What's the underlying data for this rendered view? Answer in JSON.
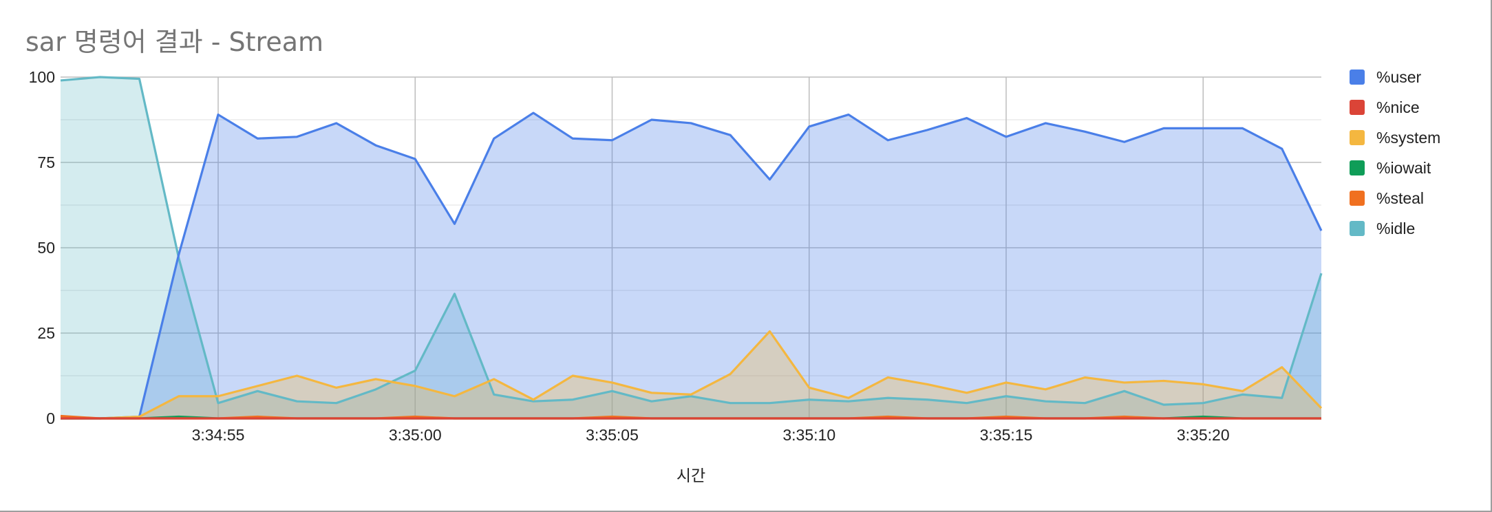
{
  "chart_data": {
    "type": "area",
    "title": "sar 명령어 결과 - Stream",
    "xlabel": "시간",
    "ylabel": "",
    "ylim": [
      0,
      100
    ],
    "yticks": [
      0,
      25,
      50,
      75,
      100
    ],
    "x_range": [
      "3:34:51",
      "3:35:23"
    ],
    "xticks": [
      "3:34:55",
      "3:35:00",
      "3:35:05",
      "3:35:10",
      "3:35:15",
      "3:35:20"
    ],
    "x": [
      "3:34:51",
      "3:34:52",
      "3:34:53",
      "3:34:54",
      "3:34:55",
      "3:34:56",
      "3:34:57",
      "3:34:58",
      "3:34:59",
      "3:35:00",
      "3:35:01",
      "3:35:02",
      "3:35:03",
      "3:35:04",
      "3:35:05",
      "3:35:06",
      "3:35:07",
      "3:35:08",
      "3:35:09",
      "3:35:10",
      "3:35:11",
      "3:35:12",
      "3:35:13",
      "3:35:14",
      "3:35:15",
      "3:35:16",
      "3:35:17",
      "3:35:18",
      "3:35:19",
      "3:35:20",
      "3:35:21",
      "3:35:22",
      "3:35:23"
    ],
    "grid": true,
    "legend_position": "right",
    "series": [
      {
        "name": "%user",
        "color": "#4a7fe8",
        "values": [
          0,
          0,
          0.5,
          48,
          89,
          82,
          82.5,
          86.5,
          80,
          76,
          57,
          82,
          89.5,
          82,
          81.5,
          87.5,
          86.5,
          83,
          70,
          85.5,
          89,
          81.5,
          84.5,
          88,
          82.5,
          86.5,
          84,
          81,
          85,
          85,
          85,
          79,
          55
        ]
      },
      {
        "name": "%nice",
        "color": "#db4437",
        "values": [
          0,
          0,
          0,
          0,
          0,
          0,
          0,
          0,
          0,
          0,
          0,
          0,
          0,
          0,
          0,
          0,
          0,
          0,
          0,
          0,
          0,
          0,
          0,
          0,
          0,
          0,
          0,
          0,
          0,
          0,
          0,
          0,
          0
        ]
      },
      {
        "name": "%system",
        "color": "#f4b740",
        "values": [
          0,
          0,
          0.5,
          6.5,
          6.5,
          9.5,
          12.5,
          9,
          11.5,
          9.5,
          6.5,
          11.5,
          5.5,
          12.5,
          10.5,
          7.5,
          7,
          13,
          25.5,
          9,
          6,
          12,
          10,
          7.5,
          10.5,
          8.5,
          12,
          10.5,
          11,
          10,
          8,
          15,
          3
        ]
      },
      {
        "name": "%iowait",
        "color": "#0f9d58",
        "values": [
          0,
          0,
          0,
          0.5,
          0,
          0,
          0,
          0,
          0,
          0,
          0,
          0,
          0,
          0,
          0,
          0,
          0,
          0,
          0,
          0,
          0,
          0,
          0,
          0,
          0,
          0,
          0,
          0,
          0,
          0.5,
          0,
          0,
          0
        ]
      },
      {
        "name": "%steal",
        "color": "#f07020",
        "values": [
          0.7,
          0,
          0,
          0,
          0,
          0.5,
          0,
          0,
          0,
          0.5,
          0,
          0,
          0,
          0,
          0.5,
          0,
          0,
          0,
          0,
          0,
          0,
          0.5,
          0,
          0,
          0.5,
          0,
          0,
          0.5,
          0,
          0,
          0,
          0,
          0
        ]
      },
      {
        "name": "%idle",
        "color": "#63b9c6",
        "values": [
          99,
          100,
          99.5,
          47,
          4.5,
          8,
          5,
          4.5,
          8.5,
          14,
          36.5,
          7,
          5,
          5.5,
          8,
          5,
          6.5,
          4.5,
          4.5,
          5.5,
          5,
          6,
          5.5,
          4.5,
          6.5,
          5,
          4.5,
          8,
          4,
          4.5,
          7,
          6,
          42.5
        ]
      }
    ]
  }
}
